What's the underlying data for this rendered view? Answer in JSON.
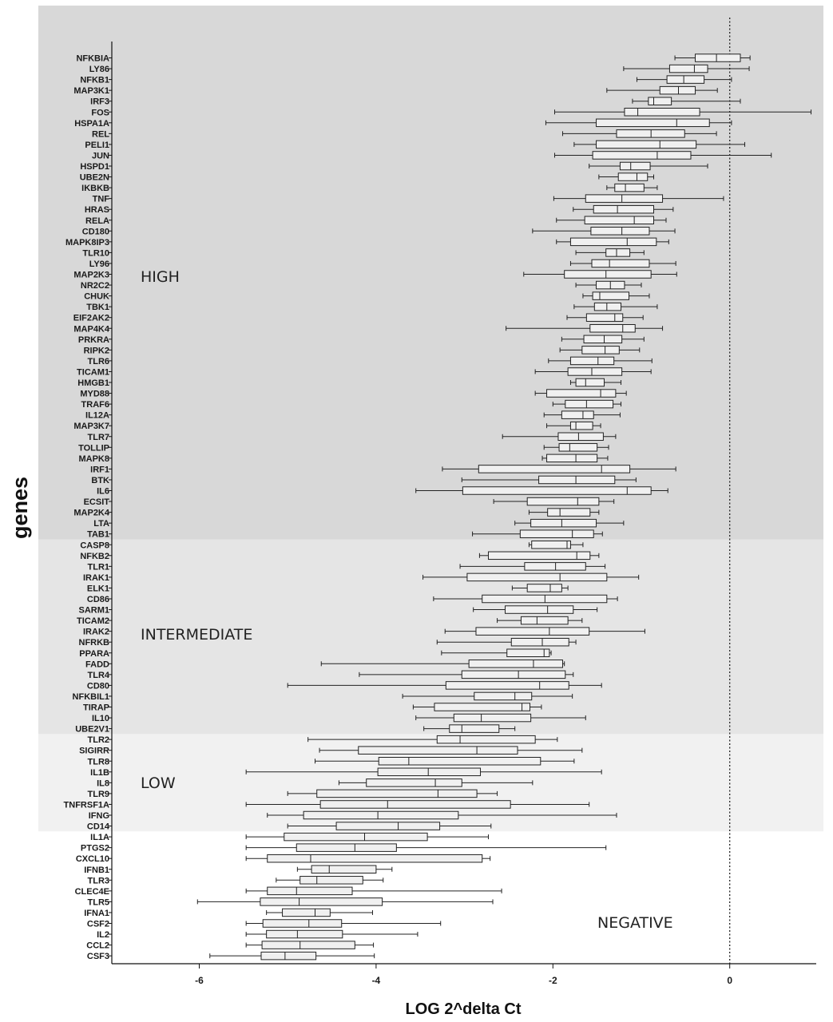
{
  "chart_data": {
    "type": "boxplot",
    "orientation": "horizontal",
    "xlabel": "LOG 2^delta Ct",
    "ylabel": "genes",
    "xlim": [
      -7,
      1
    ],
    "xticks": [
      -6,
      -4,
      -2,
      0
    ],
    "reference_line": 0,
    "colors": {
      "high_band": "#d8d8d8",
      "intermediate_band": "#e5e5e5",
      "low_band": "#f1f1f1",
      "negative_band": "#ffffff",
      "box_fill": "#f0f0f0",
      "stroke": "#222222"
    },
    "zones": [
      {
        "label": "HIGH",
        "start": 0,
        "end": 45
      },
      {
        "label": "INTERMEDIATE",
        "start": 45,
        "end": 63
      },
      {
        "label": "LOW",
        "start": 63,
        "end": 72
      },
      {
        "label": "NEGATIVE",
        "start": 72,
        "end": 85
      }
    ],
    "genes": [
      {
        "name": "NFKBIA",
        "min": -0.62,
        "q1": -0.39,
        "median": -0.15,
        "q3": 0.12,
        "max": 0.23
      },
      {
        "name": "LY86",
        "min": -1.2,
        "q1": -0.68,
        "median": -0.4,
        "q3": -0.25,
        "max": 0.22
      },
      {
        "name": "NFKB1",
        "min": -1.05,
        "q1": -0.71,
        "median": -0.52,
        "q3": -0.29,
        "max": 0.02
      },
      {
        "name": "MAP3K1",
        "min": -1.39,
        "q1": -0.79,
        "median": -0.58,
        "q3": -0.39,
        "max": -0.14
      },
      {
        "name": "IRF3",
        "min": -1.1,
        "q1": -0.92,
        "median": -0.86,
        "q3": -0.66,
        "max": 0.12
      },
      {
        "name": "FOS",
        "min": -1.98,
        "q1": -1.19,
        "median": -1.04,
        "q3": -0.34,
        "max": 0.92
      },
      {
        "name": "HSPA1A",
        "min": -2.08,
        "q1": -1.51,
        "median": -0.6,
        "q3": -0.23,
        "max": 0.02
      },
      {
        "name": "REL",
        "min": -1.89,
        "q1": -1.28,
        "median": -0.89,
        "q3": -0.51,
        "max": -0.15
      },
      {
        "name": "PELI1",
        "min": -1.76,
        "q1": -1.51,
        "median": -0.79,
        "q3": -0.38,
        "max": 0.17
      },
      {
        "name": "JUN",
        "min": -1.98,
        "q1": -1.55,
        "median": -0.82,
        "q3": -0.44,
        "max": 0.47
      },
      {
        "name": "HSPD1",
        "min": -1.59,
        "q1": -1.24,
        "median": -1.12,
        "q3": -0.9,
        "max": -0.25
      },
      {
        "name": "UBE2N",
        "min": -1.48,
        "q1": -1.26,
        "median": -1.05,
        "q3": -0.93,
        "max": -0.86
      },
      {
        "name": "IKBKB",
        "min": -1.39,
        "q1": -1.3,
        "median": -1.18,
        "q3": -0.97,
        "max": -0.82
      },
      {
        "name": "TNF",
        "min": -1.99,
        "q1": -1.63,
        "median": -1.22,
        "q3": -0.76,
        "max": -0.07
      },
      {
        "name": "HRAS",
        "min": -1.77,
        "q1": -1.54,
        "median": -1.27,
        "q3": -0.86,
        "max": -0.64
      },
      {
        "name": "RELA",
        "min": -1.96,
        "q1": -1.64,
        "median": -1.08,
        "q3": -0.86,
        "max": -0.72
      },
      {
        "name": "CD180",
        "min": -2.23,
        "q1": -1.57,
        "median": -1.22,
        "q3": -0.91,
        "max": -0.62
      },
      {
        "name": "MAPK8IP3",
        "min": -1.96,
        "q1": -1.8,
        "median": -1.16,
        "q3": -0.83,
        "max": -0.69
      },
      {
        "name": "TLR10",
        "min": -1.74,
        "q1": -1.4,
        "median": -1.28,
        "q3": -1.13,
        "max": -0.97
      },
      {
        "name": "LY96",
        "min": -1.8,
        "q1": -1.56,
        "median": -1.36,
        "q3": -0.91,
        "max": -0.61
      },
      {
        "name": "MAP2K3",
        "min": -2.33,
        "q1": -1.87,
        "median": -1.4,
        "q3": -0.89,
        "max": -0.6
      },
      {
        "name": "NR2C2",
        "min": -1.74,
        "q1": -1.51,
        "median": -1.35,
        "q3": -1.19,
        "max": -1.0
      },
      {
        "name": "CHUK",
        "min": -1.66,
        "q1": -1.55,
        "median": -1.47,
        "q3": -1.14,
        "max": -0.91
      },
      {
        "name": "TBK1",
        "min": -1.76,
        "q1": -1.53,
        "median": -1.39,
        "q3": -1.23,
        "max": -0.82
      },
      {
        "name": "EIF2AK2",
        "min": -1.84,
        "q1": -1.62,
        "median": -1.3,
        "q3": -1.21,
        "max": -0.98
      },
      {
        "name": "MAP4K4",
        "min": -2.53,
        "q1": -1.58,
        "median": -1.21,
        "q3": -1.07,
        "max": -0.76
      },
      {
        "name": "PRKRA",
        "min": -1.9,
        "q1": -1.65,
        "median": -1.42,
        "q3": -1.22,
        "max": -0.97
      },
      {
        "name": "RIPK2",
        "min": -1.92,
        "q1": -1.67,
        "median": -1.41,
        "q3": -1.25,
        "max": -1.02
      },
      {
        "name": "TLR6",
        "min": -2.05,
        "q1": -1.8,
        "median": -1.49,
        "q3": -1.31,
        "max": -0.88
      },
      {
        "name": "TICAM1",
        "min": -2.2,
        "q1": -1.83,
        "median": -1.56,
        "q3": -1.22,
        "max": -0.89
      },
      {
        "name": "HMGB1",
        "min": -1.8,
        "q1": -1.74,
        "median": -1.63,
        "q3": -1.42,
        "max": -1.23
      },
      {
        "name": "MYD88",
        "min": -2.2,
        "q1": -2.07,
        "median": -1.46,
        "q3": -1.29,
        "max": -1.17
      },
      {
        "name": "TRAF6",
        "min": -2.0,
        "q1": -1.86,
        "median": -1.62,
        "q3": -1.32,
        "max": -1.23
      },
      {
        "name": "IL12A",
        "min": -2.1,
        "q1": -1.9,
        "median": -1.66,
        "q3": -1.54,
        "max": -1.24
      },
      {
        "name": "MAP3K7",
        "min": -2.07,
        "q1": -1.8,
        "median": -1.74,
        "q3": -1.55,
        "max": -1.46
      },
      {
        "name": "TLR7",
        "min": -2.57,
        "q1": -1.94,
        "median": -1.71,
        "q3": -1.43,
        "max": -1.29
      },
      {
        "name": "TOLLIP",
        "min": -2.1,
        "q1": -1.93,
        "median": -1.81,
        "q3": -1.5,
        "max": -1.37
      },
      {
        "name": "MAPK8",
        "min": -2.12,
        "q1": -2.07,
        "median": -1.74,
        "q3": -1.5,
        "max": -1.38
      },
      {
        "name": "IRF1",
        "min": -3.25,
        "q1": -2.84,
        "median": -1.45,
        "q3": -1.13,
        "max": -0.61
      },
      {
        "name": "BTK",
        "min": -3.03,
        "q1": -2.16,
        "median": -1.74,
        "q3": -1.3,
        "max": -1.06
      },
      {
        "name": "IL6",
        "min": -3.55,
        "q1": -3.02,
        "median": -1.16,
        "q3": -0.89,
        "max": -0.7
      },
      {
        "name": "ECSIT",
        "min": -2.67,
        "q1": -2.29,
        "median": -1.72,
        "q3": -1.48,
        "max": -1.31
      },
      {
        "name": "MAP2K4",
        "min": -2.27,
        "q1": -2.06,
        "median": -1.92,
        "q3": -1.58,
        "max": -1.48
      },
      {
        "name": "LTA",
        "min": -2.43,
        "q1": -2.25,
        "median": -1.9,
        "q3": -1.51,
        "max": -1.2
      },
      {
        "name": "TAB1",
        "min": -2.91,
        "q1": -2.37,
        "median": -1.78,
        "q3": -1.54,
        "max": -1.44
      },
      {
        "name": "CASP8",
        "min": -2.27,
        "q1": -2.24,
        "median": -1.84,
        "q3": -1.8,
        "max": -1.66
      },
      {
        "name": "NFKB2",
        "min": -2.83,
        "q1": -2.73,
        "median": -1.73,
        "q3": -1.58,
        "max": -1.48
      },
      {
        "name": "TLR1",
        "min": -3.05,
        "q1": -2.32,
        "median": -1.97,
        "q3": -1.63,
        "max": -1.41
      },
      {
        "name": "IRAK1",
        "min": -3.47,
        "q1": -2.97,
        "median": -1.92,
        "q3": -1.39,
        "max": -1.03
      },
      {
        "name": "ELK1",
        "min": -2.46,
        "q1": -2.29,
        "median": -2.03,
        "q3": -1.9,
        "max": -1.83
      },
      {
        "name": "CD86",
        "min": -3.35,
        "q1": -2.8,
        "median": -2.09,
        "q3": -1.39,
        "max": -1.27
      },
      {
        "name": "SARM1",
        "min": -2.9,
        "q1": -2.54,
        "median": -2.06,
        "q3": -1.77,
        "max": -1.5
      },
      {
        "name": "TICAM2",
        "min": -2.63,
        "q1": -2.36,
        "median": -2.18,
        "q3": -1.83,
        "max": -1.67
      },
      {
        "name": "IRAK2",
        "min": -3.22,
        "q1": -2.87,
        "median": -2.04,
        "q3": -1.59,
        "max": -0.96
      },
      {
        "name": "NFRKB",
        "min": -3.31,
        "q1": -2.47,
        "median": -2.12,
        "q3": -1.82,
        "max": -1.74
      },
      {
        "name": "PPARA",
        "min": -3.26,
        "q1": -2.52,
        "median": -2.1,
        "q3": -2.04,
        "max": -2.02
      },
      {
        "name": "FADD",
        "min": -4.62,
        "q1": -2.95,
        "median": -2.22,
        "q3": -1.89,
        "max": -1.87
      },
      {
        "name": "TLR4",
        "min": -4.19,
        "q1": -3.03,
        "median": -2.39,
        "q3": -1.86,
        "max": -1.77
      },
      {
        "name": "CD80",
        "min": -5.0,
        "q1": -3.21,
        "median": -2.15,
        "q3": -1.82,
        "max": -1.45
      },
      {
        "name": "NFKBIL1",
        "min": -3.7,
        "q1": -2.89,
        "median": -2.43,
        "q3": -2.24,
        "max": -1.78
      },
      {
        "name": "TIRAP",
        "min": -3.58,
        "q1": -3.34,
        "median": -2.35,
        "q3": -2.26,
        "max": -2.13
      },
      {
        "name": "IL10",
        "min": -3.55,
        "q1": -3.12,
        "median": -2.81,
        "q3": -2.25,
        "max": -1.63
      },
      {
        "name": "UBE2V1",
        "min": -3.46,
        "q1": -3.17,
        "median": -3.03,
        "q3": -2.61,
        "max": -2.43
      },
      {
        "name": "TLR2",
        "min": -4.77,
        "q1": -3.31,
        "median": -3.05,
        "q3": -2.2,
        "max": -1.95
      },
      {
        "name": "SIGIRR",
        "min": -4.64,
        "q1": -4.2,
        "median": -2.86,
        "q3": -2.4,
        "max": -1.67
      },
      {
        "name": "TLR8",
        "min": -4.69,
        "q1": -3.97,
        "median": -3.63,
        "q3": -2.14,
        "max": -1.76
      },
      {
        "name": "IL1B",
        "min": -5.47,
        "q1": -3.98,
        "median": -3.41,
        "q3": -2.82,
        "max": -1.45
      },
      {
        "name": "IL8",
        "min": -4.42,
        "q1": -4.11,
        "median": -3.33,
        "q3": -3.03,
        "max": -2.23
      },
      {
        "name": "TLR9",
        "min": -5.0,
        "q1": -4.67,
        "median": -3.3,
        "q3": -2.86,
        "max": -2.63
      },
      {
        "name": "TNFRSF1A",
        "min": -5.47,
        "q1": -4.63,
        "median": -3.87,
        "q3": -2.48,
        "max": -1.59
      },
      {
        "name": "IFNG",
        "min": -5.23,
        "q1": -4.82,
        "median": -3.98,
        "q3": -3.07,
        "max": -1.28
      },
      {
        "name": "CD14",
        "min": -5.0,
        "q1": -4.45,
        "median": -3.75,
        "q3": -3.28,
        "max": -2.7
      },
      {
        "name": "IL1A",
        "min": -5.47,
        "q1": -5.04,
        "median": -4.13,
        "q3": -3.42,
        "max": -2.73
      },
      {
        "name": "PTGS2",
        "min": -5.47,
        "q1": -4.9,
        "median": -4.24,
        "q3": -3.77,
        "max": -1.4
      },
      {
        "name": "CXCL10",
        "min": -5.47,
        "q1": -5.23,
        "median": -4.74,
        "q3": -2.8,
        "max": -2.71
      },
      {
        "name": "IFNB1",
        "min": -4.89,
        "q1": -4.73,
        "median": -4.53,
        "q3": -4.0,
        "max": -3.82
      },
      {
        "name": "TLR3",
        "min": -5.13,
        "q1": -4.86,
        "median": -4.67,
        "q3": -4.15,
        "max": -3.92
      },
      {
        "name": "CLEC4E",
        "min": -5.47,
        "q1": -5.23,
        "median": -4.9,
        "q3": -4.27,
        "max": -2.58
      },
      {
        "name": "TLR5",
        "min": -6.02,
        "q1": -5.31,
        "median": -4.87,
        "q3": -3.93,
        "max": -2.68
      },
      {
        "name": "IFNA1",
        "min": -5.24,
        "q1": -5.06,
        "median": -4.69,
        "q3": -4.52,
        "max": -4.04
      },
      {
        "name": "CSF2",
        "min": -5.47,
        "q1": -5.28,
        "median": -4.76,
        "q3": -4.39,
        "max": -3.27
      },
      {
        "name": "IL2",
        "min": -5.47,
        "q1": -5.24,
        "median": -4.89,
        "q3": -4.38,
        "max": -3.53
      },
      {
        "name": "CCL2",
        "min": -5.47,
        "q1": -5.29,
        "median": -4.86,
        "q3": -4.24,
        "max": -4.03
      },
      {
        "name": "CSF3",
        "min": -5.88,
        "q1": -5.3,
        "median": -5.03,
        "q3": -4.68,
        "max": -4.02
      }
    ]
  }
}
